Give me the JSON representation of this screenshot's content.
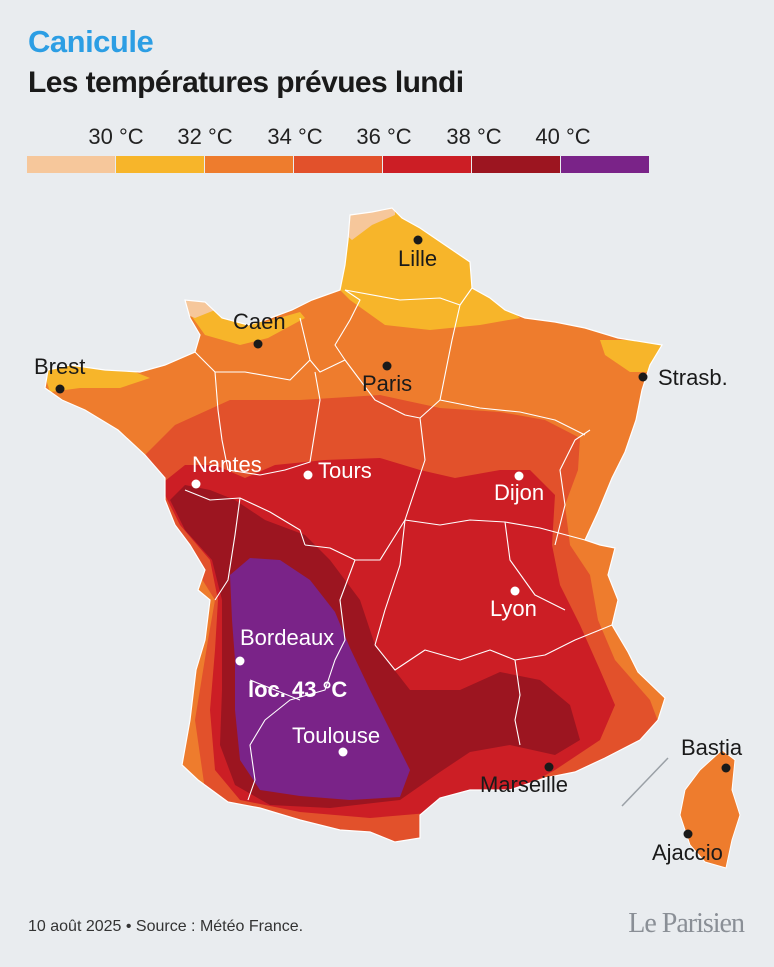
{
  "header": {
    "kicker": "Canicule",
    "title": "Les températures prévues lundi"
  },
  "legend": {
    "labels": [
      "30 °C",
      "32 °C",
      "34 °C",
      "36 °C",
      "38 °C",
      "40 °C"
    ],
    "colors": [
      "#f6c79b",
      "#f7b52a",
      "#ee7c2d",
      "#e2512b",
      "#cc1e25",
      "#9c1520",
      "#7a2388"
    ]
  },
  "map": {
    "cities": {
      "lille": "Lille",
      "caen": "Caen",
      "brest": "Brest",
      "paris": "Paris",
      "strasbourg": "Strasb.",
      "nantes": "Nantes",
      "tours": "Tours",
      "dijon": "Dijon",
      "lyon": "Lyon",
      "bordeaux": "Bordeaux",
      "toulouse": "Toulouse",
      "marseille": "Marseille",
      "bastia": "Bastia",
      "ajaccio": "Ajaccio"
    },
    "annotation": "loc. 43 °C"
  },
  "footer": {
    "source": "10 août 2025 • Source : Météo France.",
    "logo": "Le Parisien"
  }
}
